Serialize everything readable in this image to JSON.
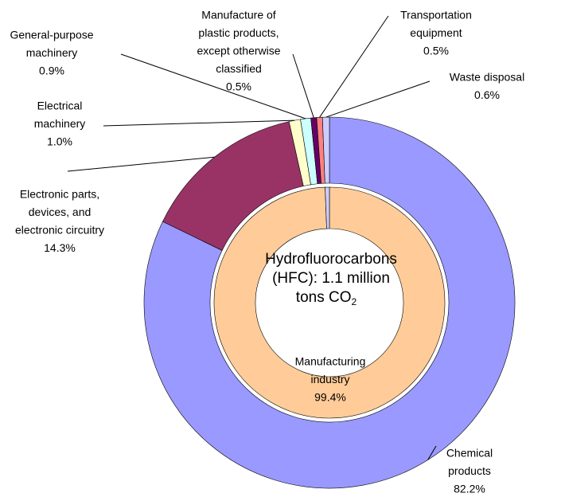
{
  "chart_data": {
    "type": "donut",
    "center_text": [
      "Hydrofluorocarbons",
      "(HFC):   1.1 million",
      "tons CO"
    ],
    "center_subscript": "2",
    "outer": {
      "categories": [
        [
          "Chemical",
          "products"
        ],
        [
          "Electronic parts,",
          "devices, and",
          "electronic circuitry"
        ],
        [
          "Electrical",
          "machinery"
        ],
        [
          "General-purpose",
          "machinery"
        ],
        [
          "Manufacture of",
          "plastic products,",
          "except otherwise",
          "classified"
        ],
        [
          "Transportation",
          "equipment"
        ],
        [
          "Waste disposal"
        ]
      ],
      "values": [
        82.2,
        14.3,
        1.0,
        0.9,
        0.5,
        0.5,
        0.6
      ],
      "value_labels": [
        "82.2%",
        "14.3%",
        "1.0%",
        "0.9%",
        "0.5%",
        "0.5%",
        "0.6%"
      ],
      "colors": [
        "#9999ff",
        "#993366",
        "#ffffcc",
        "#ccffff",
        "#660066",
        "#ff8080",
        "#ccccff"
      ]
    },
    "inner": {
      "categories": [
        [
          "Manufacturing",
          "industry"
        ],
        null
      ],
      "values": [
        99.4,
        0.6
      ],
      "value_labels": [
        "99.4%",
        null
      ],
      "colors": [
        "#ffcc99",
        "#ccccff"
      ]
    }
  }
}
